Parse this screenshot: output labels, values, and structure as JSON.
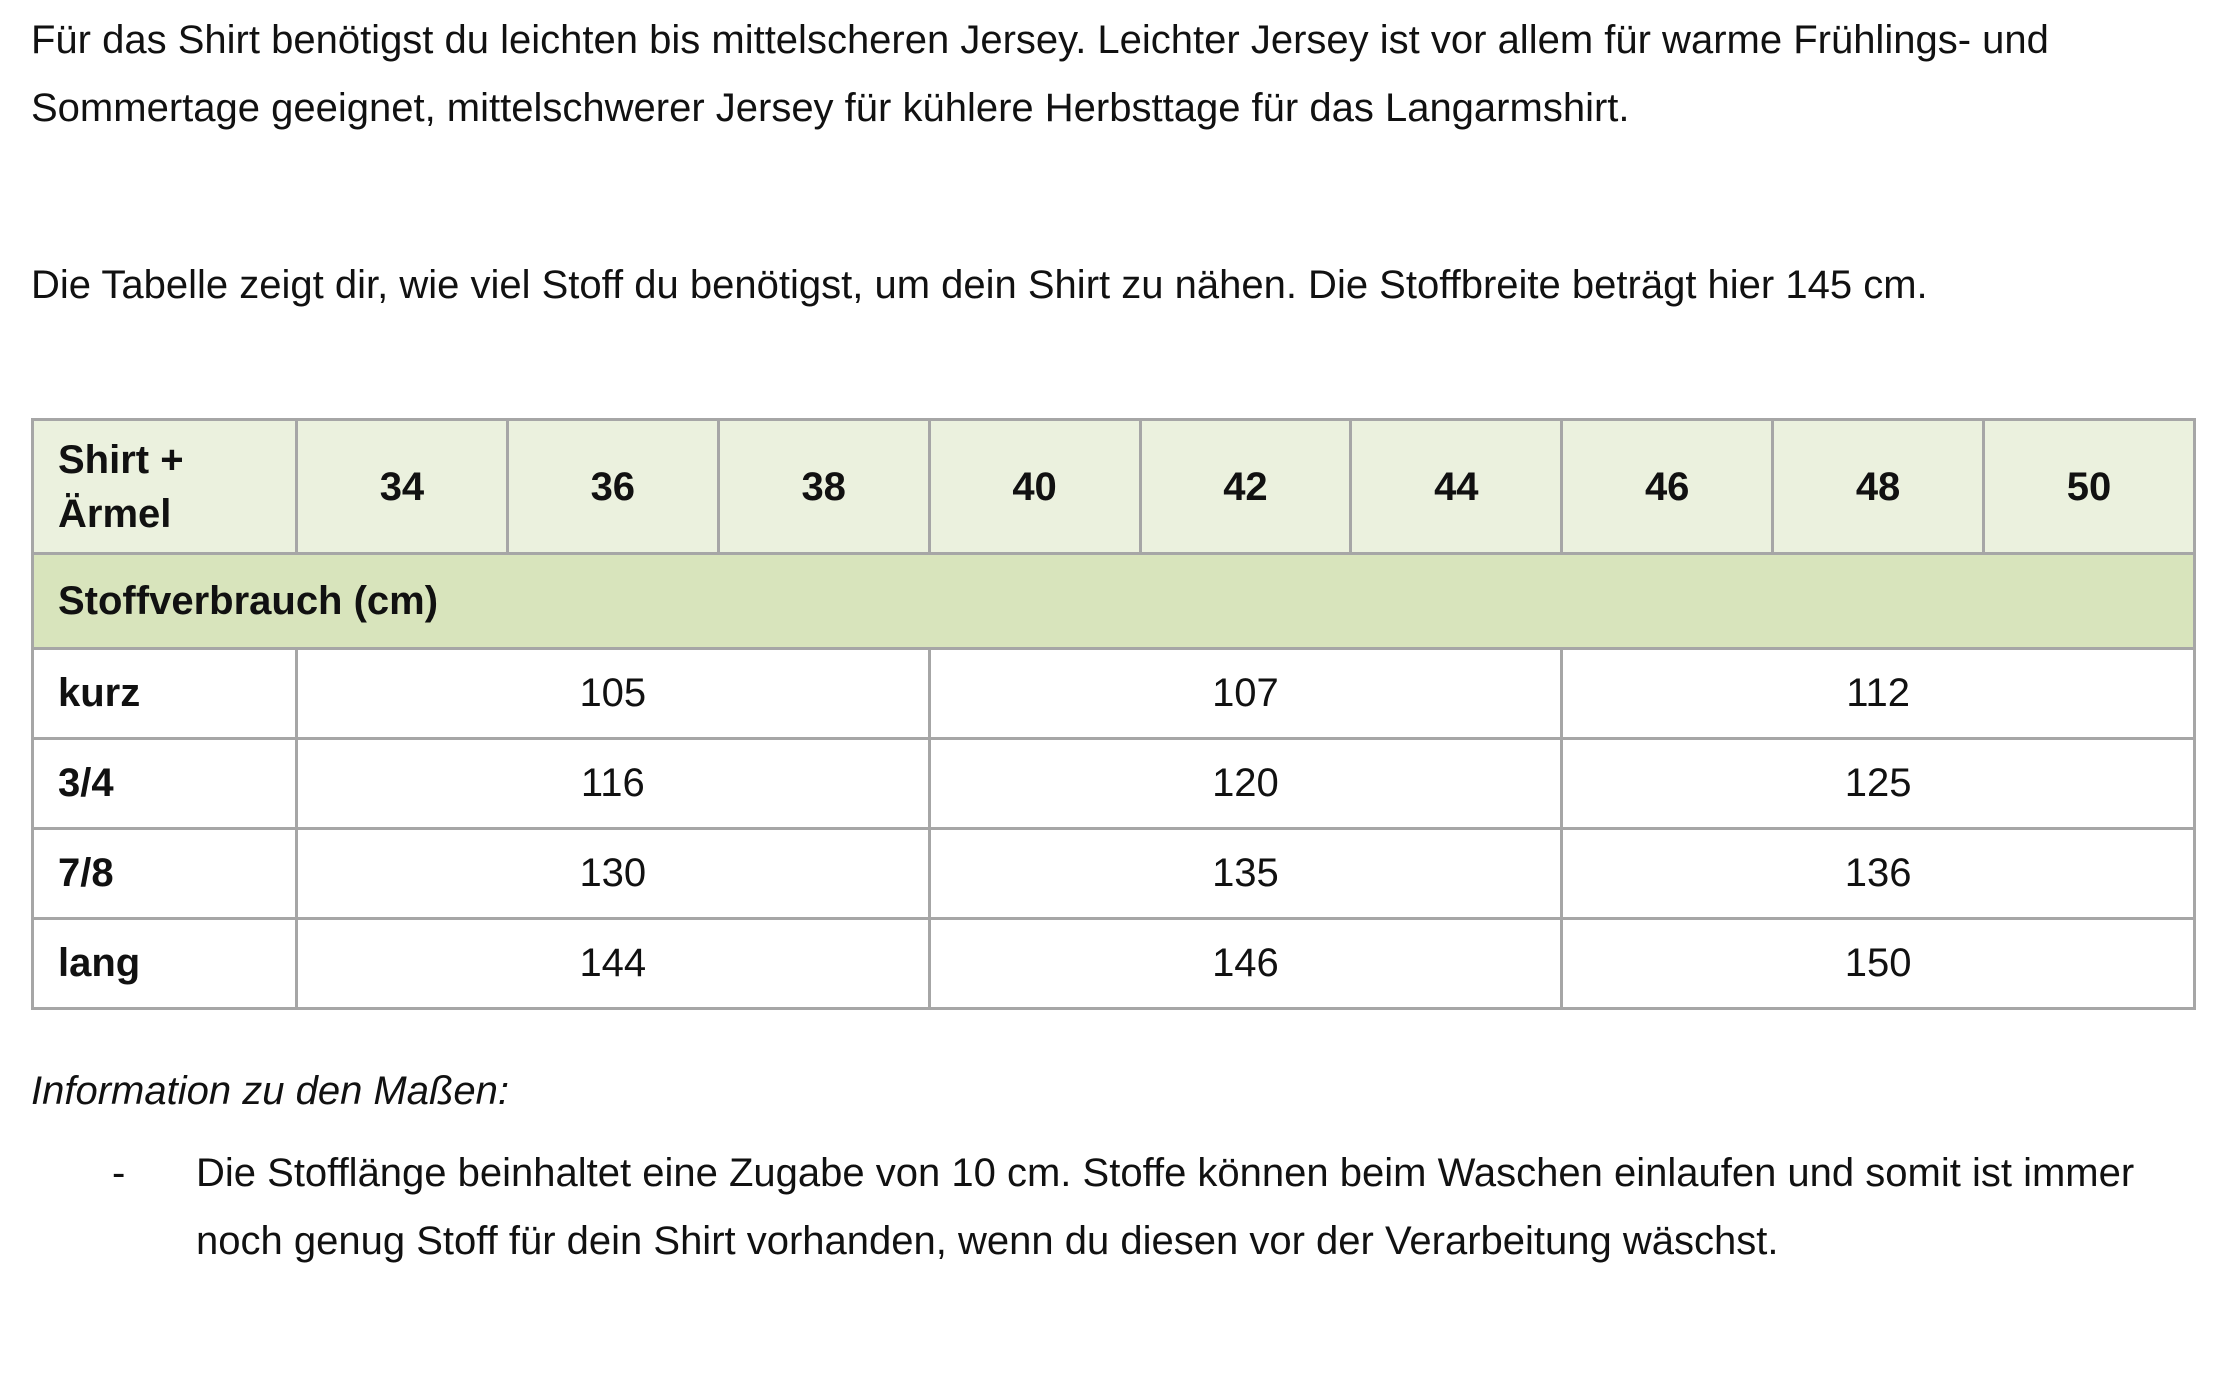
{
  "paragraphs": [
    "Für das Shirt benötigst du leichten bis mittelscheren Jersey. Leichter Jersey ist vor allem für warme Frühlings- und Sommertage geeignet, mittelschwerer Jersey für kühlere Herbsttage für das Langarmshirt.",
    "Die Tabelle zeigt dir, wie viel Stoff du benötigst, um dein Shirt zu nähen. Die Stoffbreite beträgt hier 145 cm."
  ],
  "table": {
    "corner": "Shirt + Ärmel",
    "sizes": [
      34,
      36,
      38,
      40,
      42,
      44,
      46,
      48,
      50
    ],
    "section": "Stoffverbrauch (cm)",
    "rows": [
      {
        "label": "kurz",
        "values": [
          105,
          107,
          112
        ]
      },
      {
        "label": "3/4",
        "values": [
          116,
          120,
          125
        ]
      },
      {
        "label": "7/8",
        "values": [
          130,
          135,
          136
        ]
      },
      {
        "label": "lang",
        "values": [
          144,
          146,
          150
        ]
      }
    ]
  },
  "note": {
    "title": "Information zu den Maßen:",
    "bullet": "-",
    "text": "Die Stofflänge beinhaltet eine Zugabe von 10 cm. Stoffe können beim Waschen einlaufen und somit ist immer noch genug Stoff für dein Shirt vorhanden, wenn du diesen vor der Verarbeitung wäschst."
  }
}
